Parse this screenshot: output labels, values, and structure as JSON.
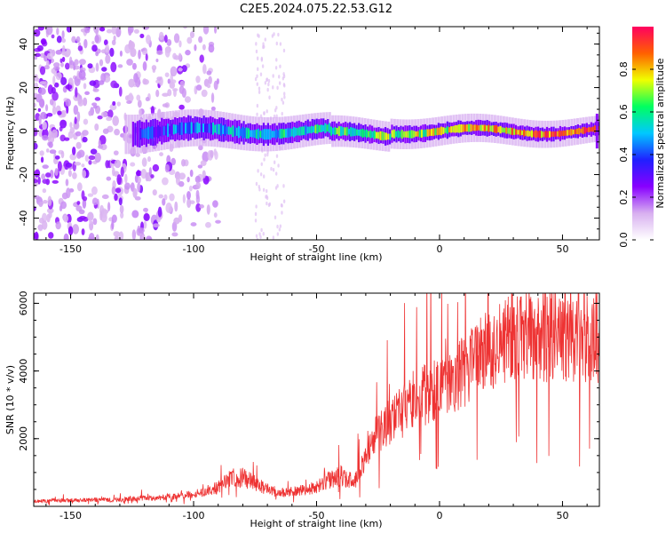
{
  "title": "C2E5.2024.075.22.53.G12",
  "chart_data": [
    {
      "type": "heatmap",
      "xlabel": "Height of straight line (km)",
      "ylabel": "Frequency (Hz)",
      "xlim": [
        -165,
        65
      ],
      "ylim": [
        -50,
        48
      ],
      "x_ticks": [
        -150,
        -100,
        -50,
        0,
        50
      ],
      "y_ticks": [
        -40,
        -20,
        0,
        20,
        40
      ],
      "colorbar": {
        "label": "Normalized spectral amplitude",
        "range": [
          0,
          1
        ],
        "ticks": [
          0.0,
          0.2,
          0.4,
          0.6,
          0.8
        ],
        "tick_labels": [
          "0.0",
          "0.2",
          "0.4",
          "0.6",
          "0.8"
        ],
        "colors": [
          "#ffffff",
          "#d8b0f0",
          "#8800ff",
          "#2020ff",
          "#00c8ff",
          "#00ff60",
          "#f0ff00",
          "#ff6000",
          "#ff0060"
        ]
      },
      "signal_band": {
        "x_start": -125,
        "x_end": 65,
        "center_hz": 0,
        "half_width_hz": [
          6,
          4,
          3
        ]
      },
      "noise_region": {
        "x_start": -165,
        "x_end": -95
      }
    },
    {
      "type": "line",
      "xlabel": "Height of straight line (km)",
      "ylabel": "SNR (10 * v/v)",
      "xlim": [
        -165,
        65
      ],
      "ylim": [
        0,
        6300
      ],
      "x_ticks": [
        -150,
        -100,
        -50,
        0,
        50
      ],
      "y_ticks": [
        2000,
        4000,
        6000
      ],
      "series": [
        {
          "color": "#ee3333",
          "x": [
            -165,
            -150,
            -130,
            -115,
            -100,
            -90,
            -85,
            -80,
            -75,
            -70,
            -65,
            -60,
            -55,
            -50,
            -45,
            -40,
            -35,
            -30,
            -25,
            -20,
            -15,
            -10,
            -5,
            0,
            5,
            10,
            15,
            20,
            25,
            30,
            35,
            40,
            45,
            50,
            55,
            60,
            65
          ],
          "y": [
            150,
            180,
            200,
            250,
            350,
            550,
            900,
            850,
            700,
            500,
            400,
            450,
            500,
            550,
            800,
            900,
            700,
            1500,
            2200,
            2500,
            2800,
            3200,
            3300,
            3500,
            3800,
            4000,
            4300,
            4600,
            4800,
            4900,
            5000,
            5000,
            5100,
            4900,
            5000,
            4950,
            5000
          ]
        }
      ]
    }
  ]
}
